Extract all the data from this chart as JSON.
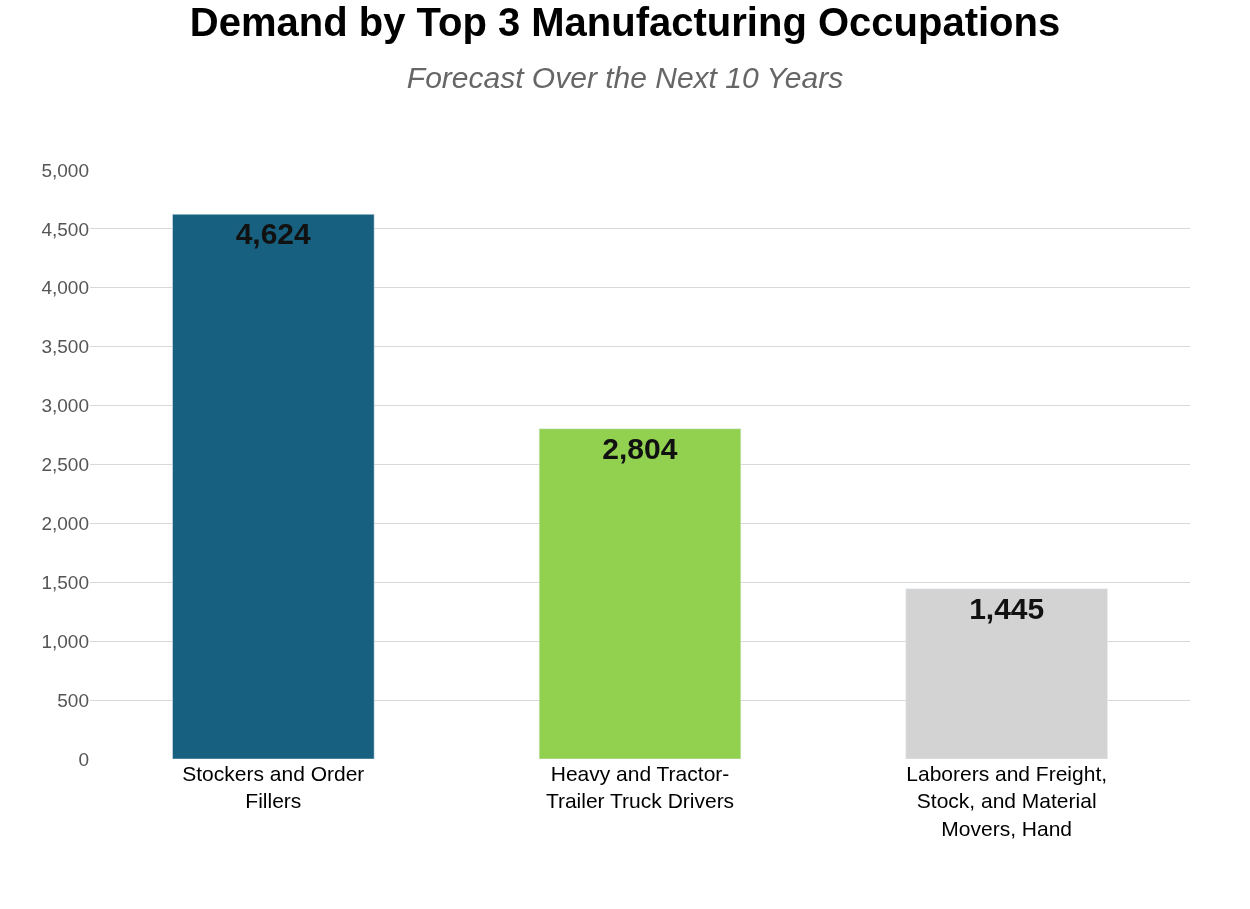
{
  "chart_data": {
    "type": "bar",
    "title": "Demand by Top 3 Manufacturing Occupations",
    "subtitle": "Forecast Over the Next 10 Years",
    "categories": [
      "Stockers and Order Fillers",
      "Heavy and Tractor-Trailer Truck Drivers",
      "Laborers and Freight, Stock, and Material Movers, Hand"
    ],
    "values": [
      4624,
      2804,
      1445
    ],
    "colors": [
      "#17607f",
      "#92d050",
      "#d3d3d3"
    ],
    "value_labels": [
      "4,624",
      "2,804",
      "1,445"
    ],
    "ylim": [
      0,
      5000
    ],
    "yticks": [
      {
        "value": 0,
        "label": "0"
      },
      {
        "value": 500,
        "label": "500"
      },
      {
        "value": 1000,
        "label": "1,000"
      },
      {
        "value": 1500,
        "label": "1,500"
      },
      {
        "value": 2000,
        "label": "2,000"
      },
      {
        "value": 2500,
        "label": "2,500"
      },
      {
        "value": 3000,
        "label": "3,000"
      },
      {
        "value": 3500,
        "label": "3,500"
      },
      {
        "value": 4000,
        "label": "4,000"
      },
      {
        "value": 4500,
        "label": "4,500"
      },
      {
        "value": 5000,
        "label": "5,000"
      }
    ],
    "grid": "y",
    "legend": false
  }
}
